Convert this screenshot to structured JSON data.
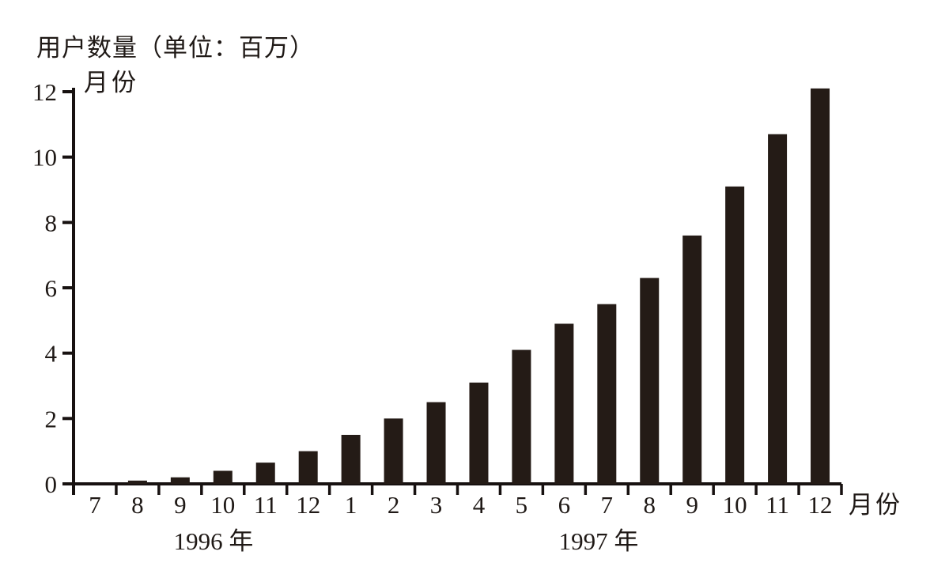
{
  "page": {
    "background_color": "#ffffff",
    "text_color": "#1f1916"
  },
  "chart_data": {
    "type": "bar",
    "title": "用户数量（单位：百万）",
    "ylabel": "用户数量（单位：百万）",
    "xlabel": "月份",
    "y_axis_top_label": "月份",
    "x_axis_end_label": "月份",
    "categories": [
      "7",
      "8",
      "9",
      "10",
      "11",
      "12",
      "1",
      "2",
      "3",
      "4",
      "5",
      "6",
      "7",
      "8",
      "9",
      "10",
      "11",
      "12"
    ],
    "values": [
      0,
      0.1,
      0.2,
      0.4,
      0.65,
      1.0,
      1.5,
      2.0,
      2.5,
      3.1,
      4.1,
      4.9,
      5.5,
      6.3,
      7.6,
      9.1,
      10.7,
      12.1
    ],
    "yticks": [
      0,
      2,
      4,
      6,
      8,
      10,
      12
    ],
    "ylim": [
      0,
      12
    ],
    "grid": false,
    "legend": false,
    "year_groups": [
      {
        "label": "1996 年",
        "start_index": 0,
        "end_index": 5
      },
      {
        "label": "1997 年",
        "start_index": 6,
        "end_index": 17
      }
    ],
    "bar_color": "#241b16",
    "axis_color": "#171110",
    "text_color": "#1f1916"
  }
}
